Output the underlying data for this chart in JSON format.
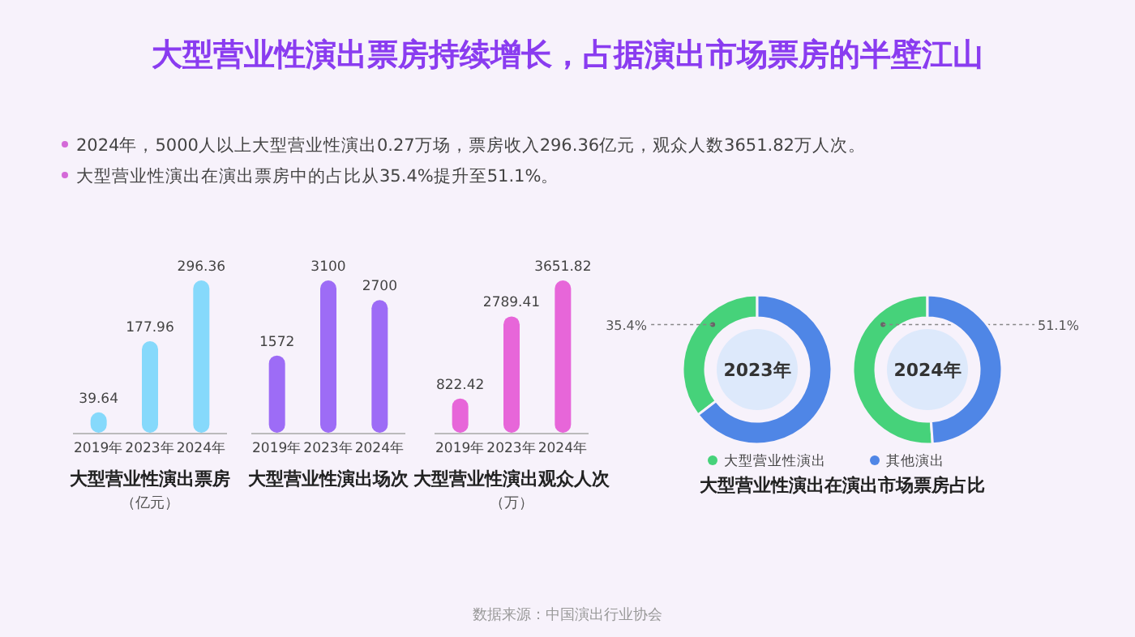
{
  "chart_data": [
    {
      "type": "other",
      "title": "大型营业性演出票房持续增长，占据演出市场票房的半壁江山",
      "annotations": [
        "2024年，5000人以上大型营业性演出0.27万场，票房收入296.36亿元，观众人数3651.82万人次。",
        "大型营业性演出在演出票房中的占比从35.4%提升至51.1%。",
        "数据来源：中国演出行业协会"
      ]
    },
    {
      "type": "bar",
      "title": "大型营业性演出票房",
      "subtitle": "（亿元）",
      "categories": [
        "2019年",
        "2023年",
        "2024年"
      ],
      "values": [
        39.64,
        177.96,
        296.36
      ],
      "color": "#86d9fb",
      "data_labels": true
    },
    {
      "type": "bar",
      "title": "大型营业性演出场次",
      "categories": [
        "2019年",
        "2023年",
        "2024年"
      ],
      "values": [
        1572,
        3100,
        2700
      ],
      "color": "#9d6cf6",
      "data_labels": true
    },
    {
      "type": "bar",
      "title": "大型营业性演出观众人次",
      "subtitle": "（万）",
      "categories": [
        "2019年",
        "2023年",
        "2024年"
      ],
      "values": [
        822.42,
        2789.41,
        3651.82
      ],
      "color": "#e766d9",
      "data_labels": true
    },
    {
      "type": "donut",
      "categories": [
        "大型营业性演出",
        "其他演出"
      ],
      "values": [
        35.4,
        64.6
      ],
      "colors": [
        "#46d27a",
        "#4f86e6"
      ],
      "value_labels": [
        "35.4%",
        null
      ],
      "annotations": [
        "2023年"
      ],
      "legend": "bottom"
    },
    {
      "type": "donut",
      "title": "大型营业性演出在演出市场票房占比",
      "categories": [
        null,
        null
      ],
      "values": [
        51.1,
        48.9
      ],
      "colors": [
        "#46d27a",
        "#4f86e6"
      ],
      "value_labels": [
        "51.1%",
        null
      ],
      "annotations": [
        "2024年"
      ]
    }
  ]
}
